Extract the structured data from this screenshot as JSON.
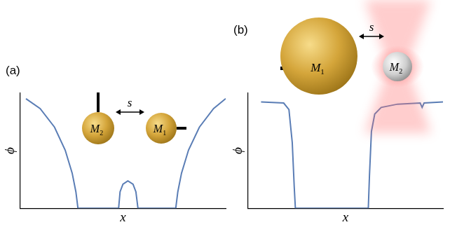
{
  "chart_data": [
    {
      "type": "line",
      "title": "(a)",
      "x_label": "x",
      "y_label": "ϕ",
      "x": [
        0.28,
        0.97,
        1.67,
        2.19,
        2.53,
        2.71,
        2.81,
        4.79,
        4.86,
        5.0,
        5.24,
        5.49,
        5.63,
        5.73,
        7.57,
        7.67,
        7.85,
        8.19,
        8.72,
        9.41,
        10.0
      ],
      "values": [
        1.0,
        0.91,
        0.74,
        0.53,
        0.32,
        0.15,
        0,
        0,
        0.15,
        0.22,
        0.25,
        0.22,
        0.15,
        0,
        0,
        0.15,
        0.32,
        0.53,
        0.74,
        0.91,
        1.0
      ],
      "color": "#5a7db5",
      "xlim": [
        0,
        10
      ],
      "ylim": [
        0,
        1.05
      ],
      "xticks": [],
      "yticks": [],
      "grid": false,
      "tick_labels": false,
      "annotations": [
        {
          "text": "M",
          "subscript": "2"
        },
        {
          "text": "M",
          "subscript": "1"
        },
        {
          "text": "s"
        }
      ]
    },
    {
      "type": "line",
      "title": "(b)",
      "x_label": "x",
      "y_label": "ϕ",
      "x": [
        0.67,
        1.83,
        2.1,
        2.27,
        2.37,
        2.43,
        6.17,
        6.23,
        6.33,
        6.5,
        6.83,
        7.67,
        8.83,
        8.93,
        9.03,
        10.0
      ],
      "values": [
        0.97,
        0.96,
        0.9,
        0.6,
        0.2,
        0,
        0,
        0.3,
        0.7,
        0.86,
        0.92,
        0.95,
        0.96,
        0.92,
        0.96,
        0.97
      ],
      "color": "#5a7db5",
      "xlim": [
        0,
        10
      ],
      "ylim": [
        0,
        1.05
      ],
      "xticks": [],
      "yticks": [],
      "grid": false,
      "tick_labels": false,
      "annotations": [
        {
          "text": "M",
          "subscript": "1"
        },
        {
          "text": "M",
          "subscript": "2"
        },
        {
          "text": "s"
        }
      ]
    }
  ]
}
